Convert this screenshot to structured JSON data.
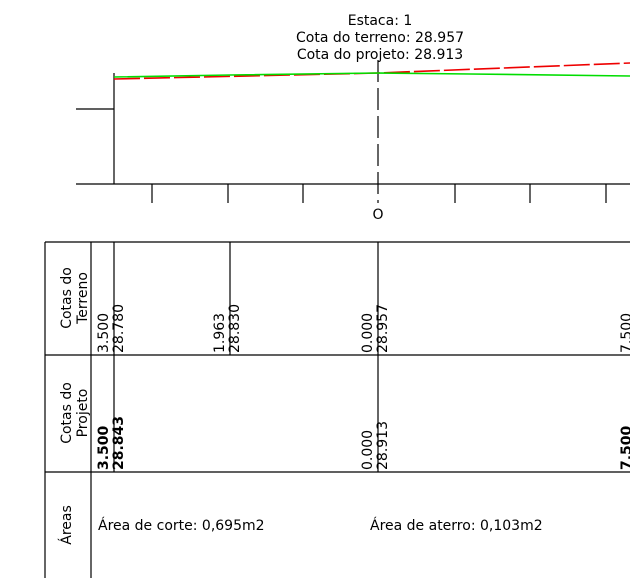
{
  "header": {
    "estaca": "Estaca: 1",
    "cota_terreno": "Cota do terreno: 28.957",
    "cota_projeto": "Cota do projeto: 28.913"
  },
  "profile": {
    "center_label": "O",
    "terrain_color": "#00dd00",
    "project_color": "#ee0000"
  },
  "table": {
    "rows": [
      {
        "label_line1": "Cotas do",
        "label_line2": "Terreno",
        "values": [
          {
            "offset": "3.500",
            "elevation": "28.780"
          },
          {
            "offset": "1.963",
            "elevation": "28.830"
          },
          {
            "offset": "0.000",
            "elevation": "28.957"
          },
          {
            "offset": "7.500",
            "elevation": ""
          }
        ]
      },
      {
        "label_line1": "Cotas do",
        "label_line2": "Projeto",
        "values": [
          {
            "offset": "3.500",
            "elevation": "28.843"
          },
          {
            "offset": "0.000",
            "elevation": "28.913"
          },
          {
            "offset": "7.500",
            "elevation": ""
          }
        ]
      }
    ],
    "areas_label": "Áreas",
    "area_corte": "Área de corte: 0,695m2",
    "area_aterro": "Área de aterro: 0,103m2"
  }
}
